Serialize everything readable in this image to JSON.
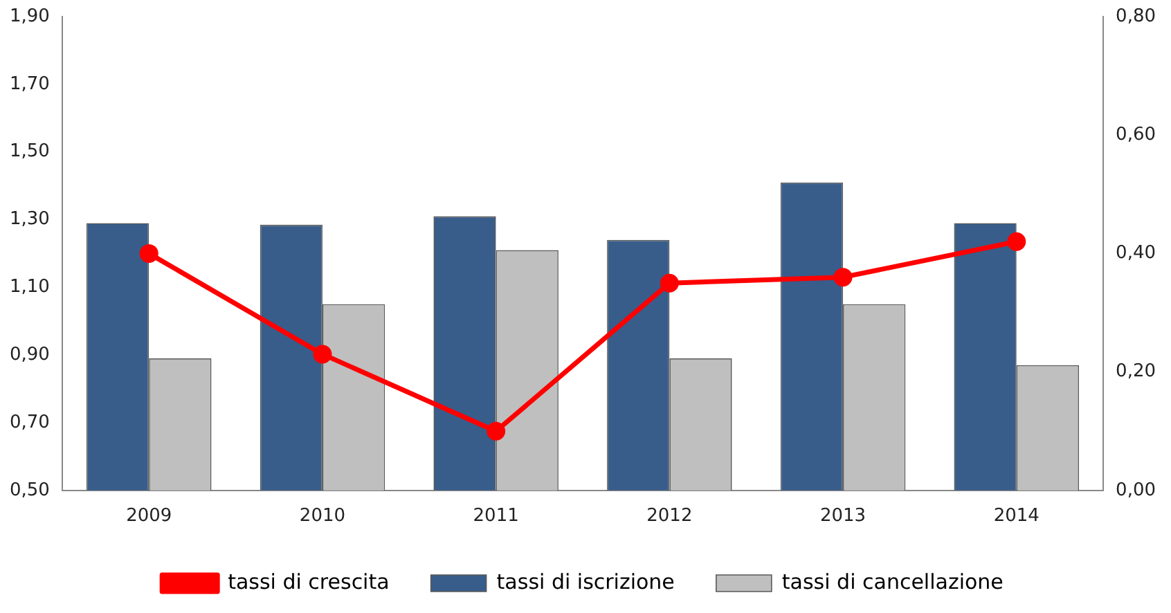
{
  "chart_data": {
    "type": "bar",
    "categories": [
      "2009",
      "2010",
      "2011",
      "2012",
      "2013",
      "2014"
    ],
    "series": [
      {
        "name": "tassi di iscrizione",
        "color": "#385d8a",
        "values": [
          1.29,
          1.285,
          1.31,
          1.24,
          1.41,
          1.29
        ]
      },
      {
        "name": "tassi di cancellazione",
        "color": "#bfbfbf",
        "values": [
          0.89,
          1.05,
          1.21,
          0.89,
          1.05,
          0.87
        ]
      },
      {
        "name": "tassi di crescita",
        "type": "line",
        "axis": "y2",
        "color": "#ff0000",
        "values": [
          0.4,
          0.23,
          0.1,
          0.35,
          0.36,
          0.42
        ]
      }
    ],
    "ylim": [
      0.5,
      1.9
    ],
    "yticks": [
      {
        "value": 0.5,
        "label": "0,50"
      },
      {
        "value": 0.7,
        "label": "0,70"
      },
      {
        "value": 0.9,
        "label": "0,90"
      },
      {
        "value": 1.1,
        "label": "1,10"
      },
      {
        "value": 1.3,
        "label": "1,30"
      },
      {
        "value": 1.5,
        "label": "1,50"
      },
      {
        "value": 1.7,
        "label": "1,70"
      },
      {
        "value": 1.9,
        "label": "1,90"
      }
    ],
    "y2lim": [
      0,
      0.8
    ],
    "y2ticks": [
      {
        "value": 0,
        "label": "0,00"
      },
      {
        "value": 0.2,
        "label": "0,20"
      },
      {
        "value": 0.4,
        "label": "0,40"
      },
      {
        "value": 0.6,
        "label": "0,60"
      },
      {
        "value": 0.8,
        "label": "0,80"
      }
    ],
    "grid": false,
    "legend": "bottom",
    "marker": "circle",
    "line_style": "solid"
  }
}
